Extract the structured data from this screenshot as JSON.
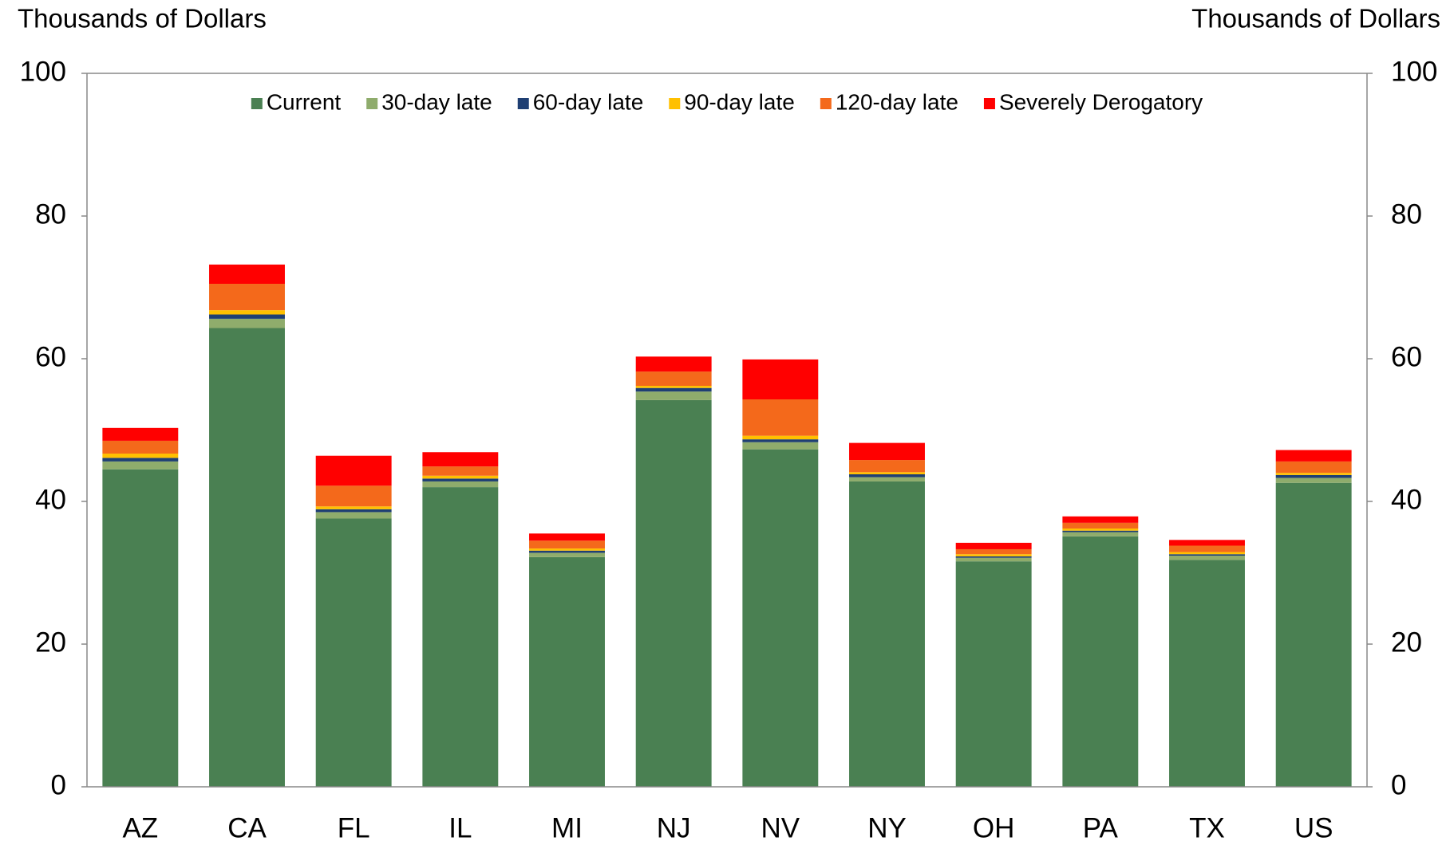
{
  "chart_data": {
    "type": "stacked_bar",
    "y_label": "Thousands of Dollars",
    "y2_label": "Thousands of Dollars",
    "categories": [
      "AZ",
      "CA",
      "FL",
      "IL",
      "MI",
      "NJ",
      "NV",
      "NY",
      "OH",
      "PA",
      "TX",
      "US"
    ],
    "series": [
      {
        "name": "Current",
        "color": "#4a8052",
        "values": [
          44.5,
          64.3,
          37.6,
          42.0,
          32.2,
          54.2,
          47.3,
          42.8,
          31.6,
          35.1,
          31.8,
          42.6
        ]
      },
      {
        "name": "30-day late",
        "color": "#8fac6c",
        "values": [
          1.1,
          1.3,
          0.9,
          0.8,
          0.6,
          1.2,
          1.0,
          0.6,
          0.5,
          0.6,
          0.6,
          0.7
        ]
      },
      {
        "name": "60-day late",
        "color": "#1f3f73",
        "values": [
          0.5,
          0.6,
          0.4,
          0.4,
          0.3,
          0.5,
          0.4,
          0.4,
          0.2,
          0.2,
          0.2,
          0.4
        ]
      },
      {
        "name": "90-day late",
        "color": "#ffc000",
        "values": [
          0.6,
          0.6,
          0.4,
          0.4,
          0.3,
          0.3,
          0.5,
          0.3,
          0.3,
          0.3,
          0.3,
          0.3
        ]
      },
      {
        "name": "120-day late",
        "color": "#f4691b",
        "values": [
          1.8,
          3.7,
          2.9,
          1.3,
          1.1,
          2.0,
          5.1,
          1.7,
          0.7,
          0.8,
          0.9,
          1.6
        ]
      },
      {
        "name": "Severely Derogatory",
        "color": "#ff0000",
        "values": [
          1.8,
          2.7,
          4.2,
          2.0,
          1.0,
          2.1,
          5.6,
          2.4,
          0.9,
          0.9,
          0.8,
          1.6
        ]
      }
    ],
    "ylim": [
      0,
      100
    ],
    "yticks": [
      0,
      20,
      40,
      60,
      80,
      100
    ],
    "y2lim": [
      0,
      100
    ],
    "y2ticks": [
      0,
      20,
      40,
      60,
      80,
      100
    ],
    "grid": false,
    "legend": "top"
  }
}
